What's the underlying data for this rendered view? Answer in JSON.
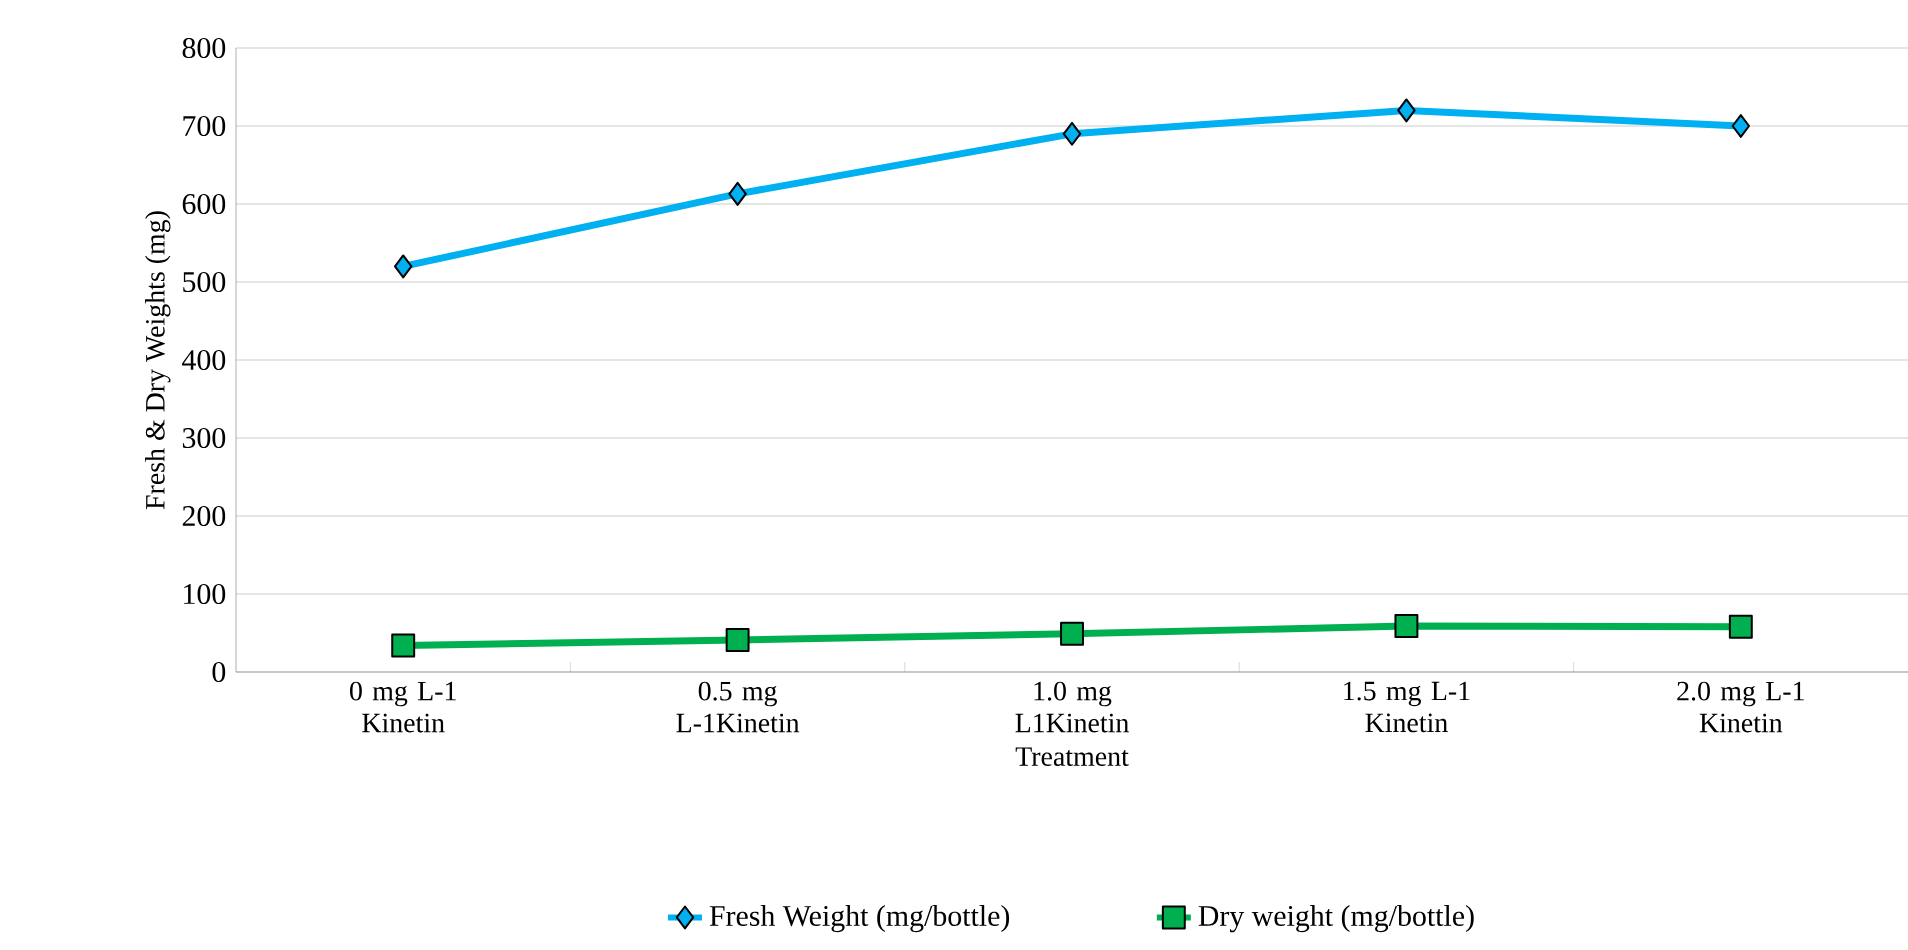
{
  "chart_data": {
    "type": "line",
    "xlabel": "Treatment",
    "ylabel": "Fresh & Dry Weights (mg)",
    "categories": [
      "0 mg L-1 Kinetin",
      "0.5 mg L-1Kinetin",
      "1.0 mg L1Kinetin",
      "1.5 mg L-1 Kinetin",
      "2.0 mg L-1 Kinetin"
    ],
    "series": [
      {
        "name": "Fresh Weight (mg/bottle)",
        "color": "#00b0f0",
        "marker": "diamond",
        "values": [
          520,
          613,
          690,
          720,
          700
        ]
      },
      {
        "name": "Dry weight (mg/bottle)",
        "color": "#00b050",
        "marker": "square",
        "values": [
          34,
          41,
          49,
          59,
          58
        ]
      }
    ],
    "ylim": [
      0,
      800
    ],
    "yticks": [
      0,
      100,
      200,
      300,
      400,
      500,
      600,
      700,
      800
    ],
    "grid": "y",
    "legend": "bottom",
    "line_style": "solid"
  }
}
